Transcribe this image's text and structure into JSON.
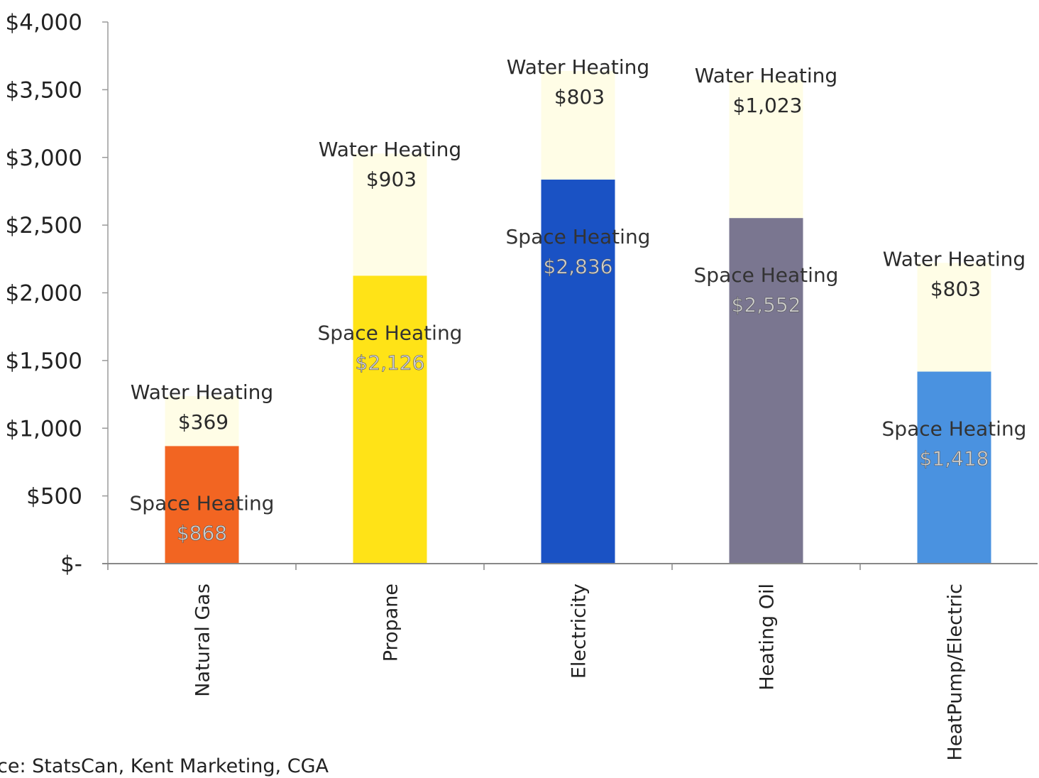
{
  "chart_data": {
    "type": "bar",
    "stacked": true,
    "categories": [
      "Natural Gas",
      "Propane",
      "Electricity",
      "Heating Oil",
      "HeatPump/Electric"
    ],
    "series": [
      {
        "name": "Space Heating",
        "values": [
          868,
          2126,
          2836,
          2552,
          1418
        ],
        "labels": [
          "Space Heating",
          "Space Heating",
          "Space Heating",
          "Space Heating",
          "Space Heating"
        ],
        "value_labels": [
          "$868",
          "$2,126",
          "$2,836",
          "$2,552",
          "$1,418"
        ]
      },
      {
        "name": "Water Heating",
        "values": [
          369,
          903,
          803,
          1023,
          803
        ],
        "labels": [
          "Water Heating",
          "Water Heating",
          "Water Heating",
          "Water Heating",
          "Water Heating"
        ],
        "value_labels": [
          "$369",
          "$903",
          "$803",
          "$1,023",
          "$803"
        ]
      }
    ],
    "bar_colors": [
      "#f26522",
      "#ffe317",
      "#1a52c4",
      "#7a7690",
      "#4a92e0"
    ],
    "water_color": "#fffde6",
    "ylim": [
      0,
      4000
    ],
    "yticks": [
      0,
      500,
      1000,
      1500,
      2000,
      2500,
      3000,
      3500,
      4000
    ],
    "ytick_labels": [
      "$-",
      "$500",
      "$1,000",
      "$1,500",
      "$2,000",
      "$2,500",
      "$3,000",
      "$3,500",
      "$4,000"
    ],
    "grid": false,
    "legend": "none"
  },
  "source": "ce: StatsCan, Kent Marketing, CGA"
}
